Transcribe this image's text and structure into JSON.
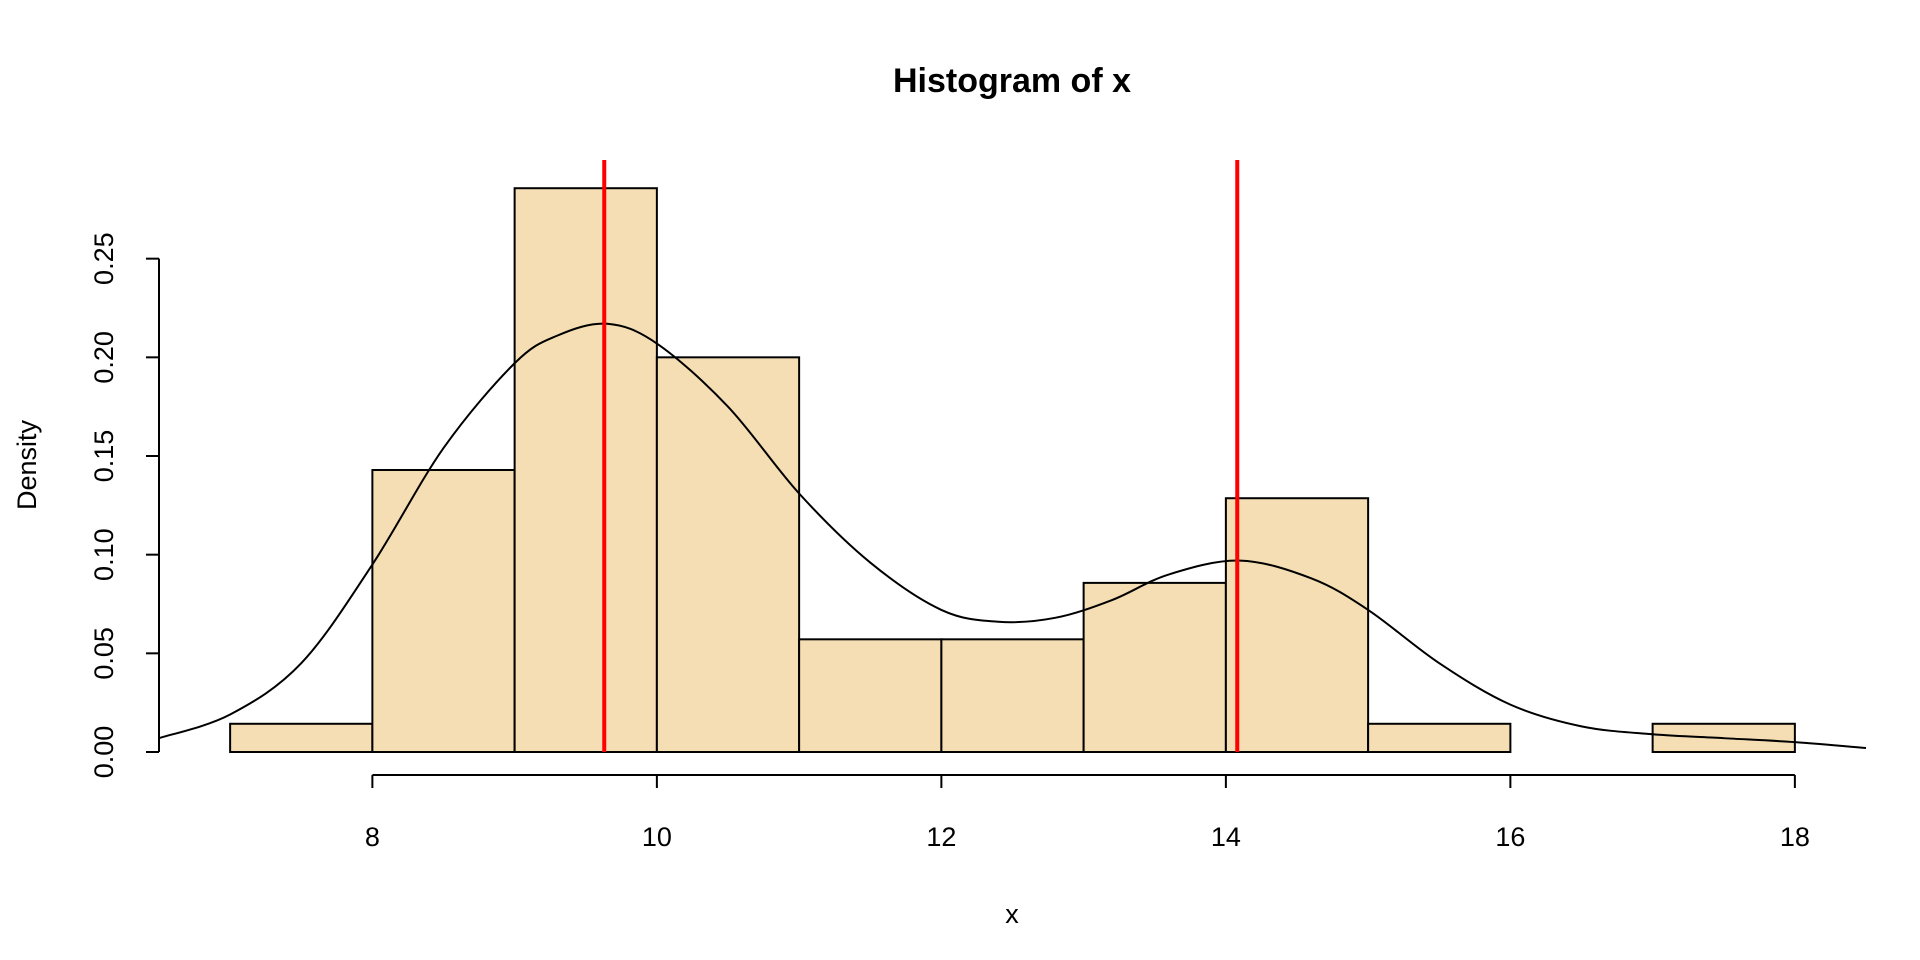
{
  "chart_data": {
    "type": "bar",
    "title": "Histogram of x",
    "xlabel": "x",
    "ylabel": "Density",
    "bins": [
      {
        "x0": 7,
        "x1": 8,
        "density": 0.0143
      },
      {
        "x0": 8,
        "x1": 9,
        "density": 0.1429
      },
      {
        "x0": 9,
        "x1": 10,
        "density": 0.2857
      },
      {
        "x0": 10,
        "x1": 11,
        "density": 0.2
      },
      {
        "x0": 11,
        "x1": 12,
        "density": 0.0571
      },
      {
        "x0": 12,
        "x1": 13,
        "density": 0.0571
      },
      {
        "x0": 13,
        "x1": 14,
        "density": 0.0857
      },
      {
        "x0": 14,
        "x1": 15,
        "density": 0.1286
      },
      {
        "x0": 15,
        "x1": 16,
        "density": 0.0143
      },
      {
        "x0": 16,
        "x1": 17,
        "density": 0
      },
      {
        "x0": 17,
        "x1": 18,
        "density": 0.0143
      }
    ],
    "density_curve": {
      "x": [
        6.5,
        7.0,
        7.5,
        8.0,
        8.5,
        9.0,
        9.3,
        9.65,
        10.0,
        10.5,
        11.0,
        11.5,
        12.0,
        12.4,
        12.8,
        13.2,
        13.6,
        14.1,
        14.6,
        15.0,
        15.5,
        16.0,
        16.5,
        17.0,
        17.5,
        18.0,
        18.5
      ],
      "y": [
        0.007,
        0.019,
        0.045,
        0.095,
        0.154,
        0.197,
        0.211,
        0.217,
        0.207,
        0.175,
        0.131,
        0.096,
        0.072,
        0.066,
        0.068,
        0.077,
        0.09,
        0.097,
        0.088,
        0.072,
        0.045,
        0.024,
        0.013,
        0.009,
        0.007,
        0.005,
        0.002
      ]
    },
    "vlines": [
      {
        "x": 9.63,
        "color": "#ff0000"
      },
      {
        "x": 14.08,
        "color": "#ff0000"
      }
    ],
    "xticks": [
      8,
      10,
      12,
      14,
      16,
      18
    ],
    "xtick_labels": [
      "8",
      "10",
      "12",
      "14",
      "16",
      "18"
    ],
    "yticks": [
      0,
      0.05,
      0.1,
      0.15,
      0.2,
      0.25
    ],
    "ytick_labels": [
      "0.00",
      "0.05",
      "0.10",
      "0.15",
      "0.20",
      "0.25"
    ],
    "xlim": [
      6.5,
      18.5
    ],
    "ylim": [
      0,
      0.3
    ],
    "bar_color": "#f5deb3",
    "grid": false
  }
}
